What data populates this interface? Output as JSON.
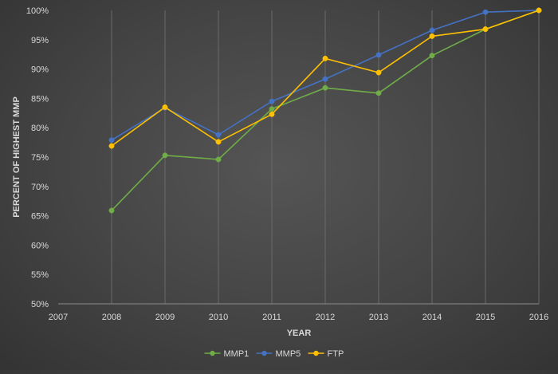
{
  "chart_data": {
    "type": "line",
    "xlabel": "YEAR",
    "ylabel": "PERCENT OF HIGHEST MMP",
    "xlim": [
      2007,
      2016
    ],
    "ylim": [
      50,
      100
    ],
    "x_ticks": [
      "2007",
      "2008",
      "2009",
      "2010",
      "2011",
      "2012",
      "2013",
      "2014",
      "2015",
      "2016"
    ],
    "y_ticks": [
      "50%",
      "55%",
      "60%",
      "65%",
      "70%",
      "75%",
      "80%",
      "85%",
      "90%",
      "95%",
      "100%"
    ],
    "x": [
      2008,
      2009,
      2010,
      2011,
      2012,
      2013,
      2014,
      2015,
      2016
    ],
    "series": [
      {
        "name": "MMP1",
        "color": "#70ad47",
        "values": [
          65.9,
          75.3,
          74.6,
          83.2,
          86.8,
          85.9,
          92.3,
          96.8,
          100
        ]
      },
      {
        "name": "MMP5",
        "color": "#4472c4",
        "values": [
          77.9,
          83.4,
          78.8,
          84.5,
          88.3,
          92.4,
          96.6,
          99.7,
          100
        ]
      },
      {
        "name": "FTP",
        "color": "#ffc000",
        "values": [
          76.9,
          83.5,
          77.6,
          82.3,
          91.8,
          89.4,
          95.6,
          96.8,
          100
        ]
      }
    ],
    "grid": "vertical",
    "legend": "bottom",
    "colors": {
      "axis_text": "#d9d9d9",
      "grid": "#6a6a6a",
      "axis_line": "#8c8c8c"
    }
  }
}
